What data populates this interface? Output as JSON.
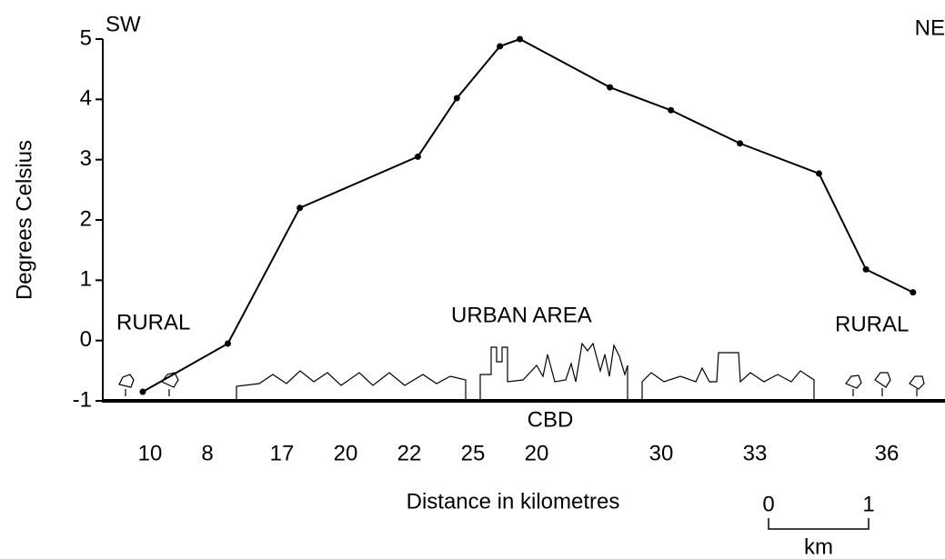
{
  "chart_data": {
    "type": "line",
    "y_label": "Degrees Celsius",
    "x_label": "Distance in kilometres",
    "left_direction": "SW",
    "right_direction": "NE",
    "annotations": [
      "RURAL",
      "URBAN AREA",
      "RURAL",
      "CBD"
    ],
    "x_labels": [
      "10",
      "8",
      "17",
      "20",
      "22",
      "25",
      "20",
      "30",
      "33",
      "36"
    ],
    "scale_bar": {
      "start": "0",
      "end": "1",
      "unit": "km"
    },
    "x": [
      0.4,
      1.25,
      1.97,
      3.15,
      3.54,
      3.97,
      4.17,
      5.07,
      5.68,
      6.37,
      7.16,
      7.63,
      8.1
    ],
    "series": [
      {
        "color": "#000000",
        "values": [
          -0.85,
          -0.05,
          2.2,
          3.05,
          4.02,
          4.88,
          5.0,
          4.2,
          3.82,
          3.27,
          2.77,
          1.18,
          0.8
        ]
      }
    ],
    "xlim": [
      0,
      8.42
    ],
    "ylim": [
      -1,
      5
    ],
    "yticks": [
      -1,
      0,
      1,
      2,
      3,
      4,
      5
    ]
  }
}
